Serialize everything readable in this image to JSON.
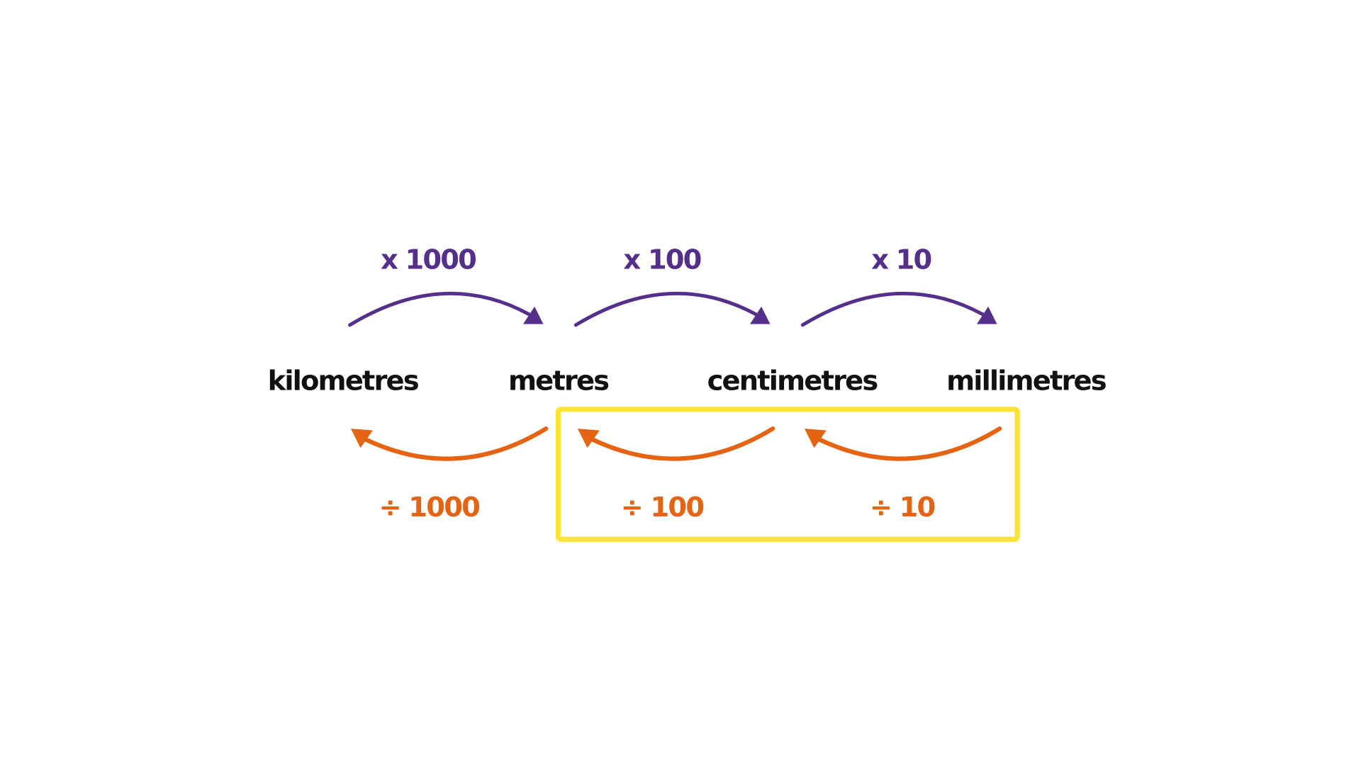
{
  "colors": {
    "multiply": "#55308A",
    "divide": "#E56414",
    "highlight": "#FFE438",
    "units": "#111111"
  },
  "units": [
    "kilometres",
    "metres",
    "centimetres",
    "millimetres"
  ],
  "multiply_labels": [
    "x 1000",
    "x 100",
    "x 10"
  ],
  "divide_labels": [
    "÷ 1000",
    "÷ 100",
    "÷ 10"
  ],
  "highlight": {
    "covers": [
      "÷ 100",
      "÷ 10"
    ]
  }
}
